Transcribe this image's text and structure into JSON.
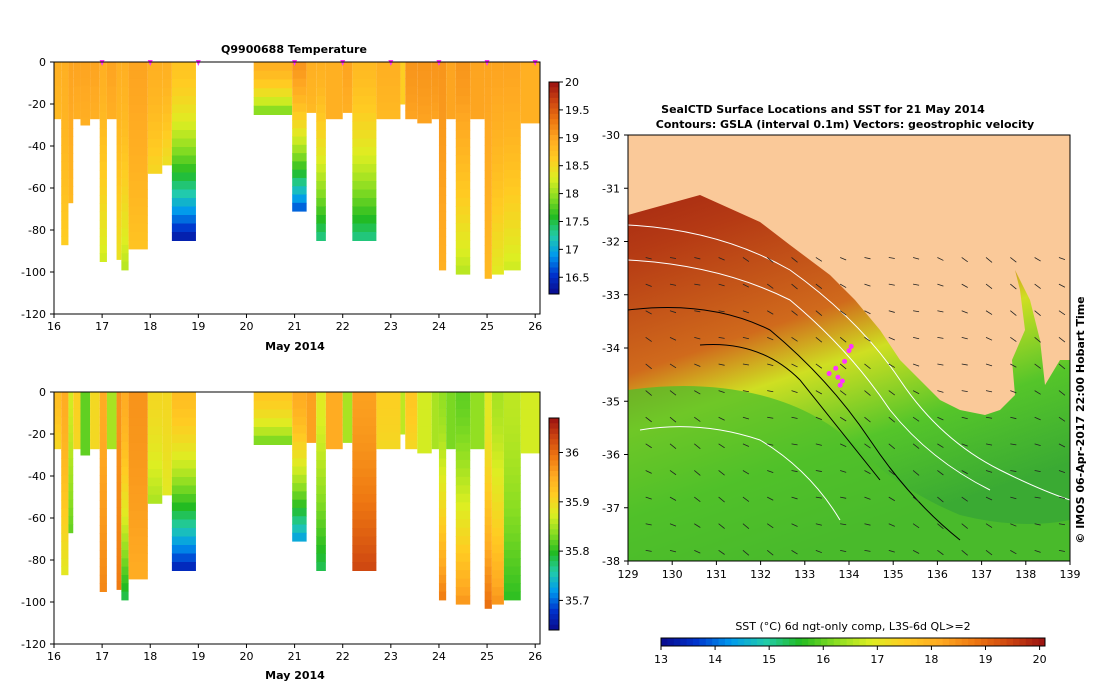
{
  "colors": {
    "land": "#fac999",
    "background": "#ffffff",
    "axis": "#000000",
    "ctd_location": "#ff33ff",
    "colormap": [
      "#0a0a8c",
      "#0033cc",
      "#0099ee",
      "#22ccaa",
      "#22bb22",
      "#88dd22",
      "#ddee22",
      "#ffcc22",
      "#ffaa22",
      "#ee7711",
      "#cc4411",
      "#991111"
    ]
  },
  "chart_data": [
    {
      "id": "temperature_profiles",
      "type": "heatmap",
      "title": "Q9900688  Temperature",
      "xlabel": "May 2014",
      "xlim": [
        16,
        26.1
      ],
      "ylim": [
        -120,
        0
      ],
      "xticks": [
        "16",
        "17",
        "18",
        "19",
        "20",
        "21",
        "22",
        "23",
        "24",
        "25",
        "26"
      ],
      "yticks": [
        "0",
        "-20",
        "-40",
        "-60",
        "-80",
        "-100",
        "-120"
      ],
      "surface_markers": [
        17,
        18,
        19,
        21,
        22,
        23,
        24,
        25,
        26
      ],
      "colorbar": {
        "min": 16.2,
        "max": 20,
        "ticks": [
          "20",
          "19.5",
          "19",
          "18.5",
          "18",
          "17.5",
          "17",
          "16.5"
        ]
      },
      "profiles": [
        {
          "x0": 16.0,
          "x1": 16.15,
          "depth": 27,
          "top": 18.9,
          "bottom": 18.8
        },
        {
          "x0": 16.15,
          "x1": 16.3,
          "depth": 87,
          "top": 18.9,
          "bottom": 18.6
        },
        {
          "x0": 16.3,
          "x1": 16.4,
          "depth": 67,
          "top": 19.0,
          "bottom": 18.8
        },
        {
          "x0": 16.4,
          "x1": 16.55,
          "depth": 27,
          "top": 19.0,
          "bottom": 18.9
        },
        {
          "x0": 16.55,
          "x1": 16.75,
          "depth": 30,
          "top": 19.0,
          "bottom": 18.9
        },
        {
          "x0": 16.75,
          "x1": 16.95,
          "depth": 27,
          "top": 19.0,
          "bottom": 18.9
        },
        {
          "x0": 16.95,
          "x1": 17.1,
          "depth": 95,
          "top": 18.9,
          "bottom": 18.2
        },
        {
          "x0": 17.1,
          "x1": 17.3,
          "depth": 27,
          "top": 19.0,
          "bottom": 18.9
        },
        {
          "x0": 17.3,
          "x1": 17.4,
          "depth": 94,
          "top": 18.9,
          "bottom": 18.4
        },
        {
          "x0": 17.4,
          "x1": 17.55,
          "depth": 99,
          "top": 18.9,
          "bottom": 18.1
        },
        {
          "x0": 17.55,
          "x1": 17.95,
          "depth": 89,
          "top": 19.0,
          "bottom": 18.7
        },
        {
          "x0": 17.95,
          "x1": 18.25,
          "depth": 53,
          "top": 18.9,
          "bottom": 18.5
        },
        {
          "x0": 18.25,
          "x1": 18.45,
          "depth": 49,
          "top": 18.9,
          "bottom": 18.4
        },
        {
          "x0": 18.45,
          "x1": 18.95,
          "depth": 85,
          "top": 18.7,
          "bottom": 16.3
        },
        {
          "x0": 20.15,
          "x1": 20.95,
          "depth": 25,
          "top": 18.9,
          "bottom": 17.8
        },
        {
          "x0": 20.95,
          "x1": 21.25,
          "depth": 71,
          "top": 19.1,
          "bottom": 16.6
        },
        {
          "x0": 21.25,
          "x1": 21.45,
          "depth": 24,
          "top": 18.9,
          "bottom": 18.8
        },
        {
          "x0": 21.45,
          "x1": 21.65,
          "depth": 85,
          "top": 18.9,
          "bottom": 17.3
        },
        {
          "x0": 21.65,
          "x1": 22.0,
          "depth": 27,
          "top": 18.9,
          "bottom": 18.9
        },
        {
          "x0": 22.0,
          "x1": 22.2,
          "depth": 24,
          "top": 19.0,
          "bottom": 18.9
        },
        {
          "x0": 22.2,
          "x1": 22.7,
          "depth": 85,
          "top": 18.8,
          "bottom": 17.3
        },
        {
          "x0": 22.7,
          "x1": 23.2,
          "depth": 27,
          "top": 18.9,
          "bottom": 18.8
        },
        {
          "x0": 23.2,
          "x1": 23.3,
          "depth": 20,
          "top": 18.6,
          "bottom": 18.6
        },
        {
          "x0": 23.3,
          "x1": 23.55,
          "depth": 27,
          "top": 19.1,
          "bottom": 19.0
        },
        {
          "x0": 23.55,
          "x1": 23.85,
          "depth": 29,
          "top": 19.1,
          "bottom": 19.0
        },
        {
          "x0": 23.85,
          "x1": 24.0,
          "depth": 27,
          "top": 19.1,
          "bottom": 19.0
        },
        {
          "x0": 24.0,
          "x1": 24.15,
          "depth": 99,
          "top": 19.1,
          "bottom": 18.9
        },
        {
          "x0": 24.15,
          "x1": 24.35,
          "depth": 27,
          "top": 19.0,
          "bottom": 19.0
        },
        {
          "x0": 24.35,
          "x1": 24.65,
          "depth": 101,
          "top": 19.1,
          "bottom": 18.1
        },
        {
          "x0": 24.65,
          "x1": 24.95,
          "depth": 27,
          "top": 19.0,
          "bottom": 19.0
        },
        {
          "x0": 24.95,
          "x1": 25.1,
          "depth": 103,
          "top": 19.0,
          "bottom": 18.8
        },
        {
          "x0": 25.1,
          "x1": 25.35,
          "depth": 101,
          "top": 19.0,
          "bottom": 18.3
        },
        {
          "x0": 25.35,
          "x1": 25.7,
          "depth": 99,
          "top": 19.0,
          "bottom": 18.2
        },
        {
          "x0": 25.7,
          "x1": 26.1,
          "depth": 29,
          "top": 18.9,
          "bottom": 18.9
        }
      ]
    },
    {
      "id": "salinity_profiles",
      "type": "heatmap",
      "title": "",
      "xlabel": "May 2014",
      "xlim": [
        16,
        26.1
      ],
      "ylim": [
        -120,
        0
      ],
      "xticks": [
        "16",
        "17",
        "18",
        "19",
        "20",
        "21",
        "22",
        "23",
        "24",
        "25",
        "26"
      ],
      "yticks": [
        "0",
        "-20",
        "-40",
        "-60",
        "-80",
        "-100",
        "-120"
      ],
      "colorbar": {
        "min": 35.64,
        "max": 36.07,
        "ticks": [
          "36",
          "35.9",
          "35.8",
          "35.7"
        ]
      },
      "profiles": [
        {
          "x0": 16.0,
          "x1": 16.15,
          "depth": 27,
          "top": 35.93,
          "bottom": 35.9
        },
        {
          "x0": 16.15,
          "x1": 16.3,
          "depth": 87,
          "top": 35.95,
          "bottom": 35.88
        },
        {
          "x0": 16.3,
          "x1": 16.4,
          "depth": 67,
          "top": 35.87,
          "bottom": 35.82
        },
        {
          "x0": 16.4,
          "x1": 16.55,
          "depth": 27,
          "top": 35.91,
          "bottom": 35.9
        },
        {
          "x0": 16.55,
          "x1": 16.75,
          "depth": 30,
          "top": 35.82,
          "bottom": 35.82
        },
        {
          "x0": 16.75,
          "x1": 16.95,
          "depth": 27,
          "top": 35.9,
          "bottom": 35.9
        },
        {
          "x0": 16.95,
          "x1": 17.1,
          "depth": 95,
          "top": 35.95,
          "bottom": 35.98
        },
        {
          "x0": 17.1,
          "x1": 17.3,
          "depth": 27,
          "top": 35.85,
          "bottom": 35.85
        },
        {
          "x0": 17.3,
          "x1": 17.4,
          "depth": 94,
          "top": 35.97,
          "bottom": 35.99
        },
        {
          "x0": 17.4,
          "x1": 17.55,
          "depth": 99,
          "top": 35.95,
          "bottom": 35.78
        },
        {
          "x0": 17.55,
          "x1": 17.95,
          "depth": 89,
          "top": 35.97,
          "bottom": 35.95
        },
        {
          "x0": 17.95,
          "x1": 18.25,
          "depth": 53,
          "top": 35.9,
          "bottom": 35.85
        },
        {
          "x0": 18.25,
          "x1": 18.45,
          "depth": 49,
          "top": 35.9,
          "bottom": 35.88
        },
        {
          "x0": 18.45,
          "x1": 18.95,
          "depth": 85,
          "top": 35.93,
          "bottom": 35.66
        },
        {
          "x0": 20.15,
          "x1": 20.95,
          "depth": 25,
          "top": 35.92,
          "bottom": 35.82
        },
        {
          "x0": 20.95,
          "x1": 21.25,
          "depth": 71,
          "top": 35.95,
          "bottom": 35.72
        },
        {
          "x0": 21.25,
          "x1": 21.45,
          "depth": 24,
          "top": 35.96,
          "bottom": 35.96
        },
        {
          "x0": 21.45,
          "x1": 21.65,
          "depth": 85,
          "top": 35.88,
          "bottom": 35.78
        },
        {
          "x0": 21.65,
          "x1": 22.0,
          "depth": 27,
          "top": 35.95,
          "bottom": 35.95
        },
        {
          "x0": 22.0,
          "x1": 22.2,
          "depth": 24,
          "top": 35.85,
          "bottom": 35.85
        },
        {
          "x0": 22.2,
          "x1": 22.7,
          "depth": 85,
          "top": 35.96,
          "bottom": 36.03
        },
        {
          "x0": 22.7,
          "x1": 23.2,
          "depth": 27,
          "top": 35.91,
          "bottom": 35.9
        },
        {
          "x0": 23.2,
          "x1": 23.3,
          "depth": 20,
          "top": 35.86,
          "bottom": 35.86
        },
        {
          "x0": 23.3,
          "x1": 23.55,
          "depth": 27,
          "top": 35.92,
          "bottom": 35.9
        },
        {
          "x0": 23.55,
          "x1": 23.85,
          "depth": 29,
          "top": 35.87,
          "bottom": 35.87
        },
        {
          "x0": 23.85,
          "x1": 24.0,
          "depth": 27,
          "top": 35.85,
          "bottom": 35.85
        },
        {
          "x0": 24.0,
          "x1": 24.15,
          "depth": 99,
          "top": 35.84,
          "bottom": 35.99
        },
        {
          "x0": 24.15,
          "x1": 24.35,
          "depth": 27,
          "top": 35.83,
          "bottom": 35.83
        },
        {
          "x0": 24.35,
          "x1": 24.65,
          "depth": 101,
          "top": 35.82,
          "bottom": 35.97
        },
        {
          "x0": 24.65,
          "x1": 24.95,
          "depth": 27,
          "top": 35.84,
          "bottom": 35.84
        },
        {
          "x0": 24.95,
          "x1": 25.1,
          "depth": 103,
          "top": 35.88,
          "bottom": 36.0
        },
        {
          "x0": 25.1,
          "x1": 25.35,
          "depth": 101,
          "top": 35.85,
          "bottom": 35.97
        },
        {
          "x0": 25.35,
          "x1": 25.7,
          "depth": 99,
          "top": 35.86,
          "bottom": 35.8
        },
        {
          "x0": 25.7,
          "x1": 26.1,
          "depth": 29,
          "top": 35.87,
          "bottom": 35.87
        }
      ]
    },
    {
      "id": "sst_map",
      "type": "heatmap",
      "title": "SealCTD Surface Locations and SST for 21 May 2014",
      "subtitle": "Contours: GSLA (interval 0.1m) Vectors: geostrophic velocity",
      "xlim": [
        129,
        139
      ],
      "ylim": [
        -38,
        -30
      ],
      "xticks": [
        "129",
        "130",
        "131",
        "132",
        "133",
        "134",
        "135",
        "136",
        "137",
        "138",
        "139"
      ],
      "yticks": [
        "-30",
        "-31",
        "-32",
        "-33",
        "-34",
        "-35",
        "-36",
        "-37",
        "-38"
      ],
      "credit": "© IMOS 06-Apr-2017 22:00 Hobart Time",
      "colorbar": {
        "label": "SST (°C) 6d ngt-only comp, L3S-6d QL>=2",
        "min": 13,
        "max": 20.1,
        "ticks": [
          "13",
          "14",
          "15",
          "16",
          "17",
          "18",
          "19",
          "20"
        ]
      },
      "ctd_locations": [
        {
          "lon": 133.55,
          "lat": -34.48
        },
        {
          "lon": 133.7,
          "lat": -34.38
        },
        {
          "lon": 133.75,
          "lat": -34.55
        },
        {
          "lon": 133.85,
          "lat": -34.62
        },
        {
          "lon": 133.9,
          "lat": -34.25
        },
        {
          "lon": 134.0,
          "lat": -34.05
        },
        {
          "lon": 134.05,
          "lat": -33.97
        },
        {
          "lon": 133.8,
          "lat": -34.7
        }
      ]
    }
  ]
}
